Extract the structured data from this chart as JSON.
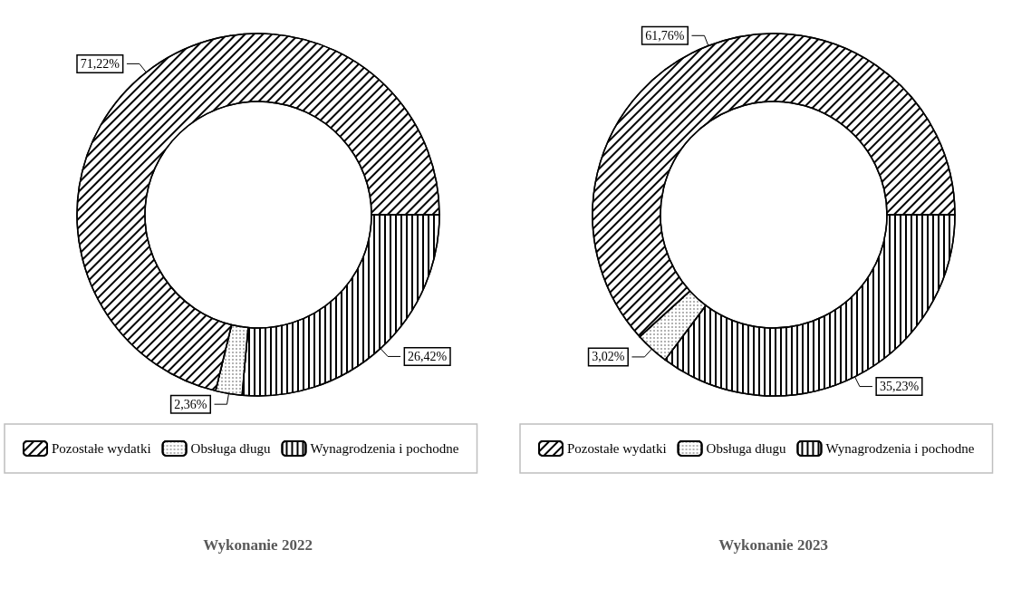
{
  "chart_data": [
    {
      "type": "donut",
      "title": "Wykonanie 2022",
      "categories": [
        "Wynagrodzenia i pochodne",
        "Obsługa długu",
        "Pozostałe wydatki"
      ],
      "values": [
        26.42,
        2.36,
        71.22
      ],
      "value_labels": [
        "26,42%",
        "2,36%",
        "71,22%"
      ],
      "colors": [
        "#ffffff",
        "#ffffff",
        "#ffffff"
      ],
      "legend": "bottom"
    },
    {
      "type": "donut",
      "title": "Wykonanie 2023",
      "categories": [
        "Wynagrodzenia i pochodne",
        "Obsługa długu",
        "Pozostałe wydatki"
      ],
      "values": [
        35.23,
        3.02,
        61.76
      ],
      "value_labels": [
        "35,23%",
        "3,02%",
        "61,76%"
      ],
      "colors": [
        "#ffffff",
        "#ffffff",
        "#ffffff"
      ],
      "legend": "bottom"
    }
  ]
}
